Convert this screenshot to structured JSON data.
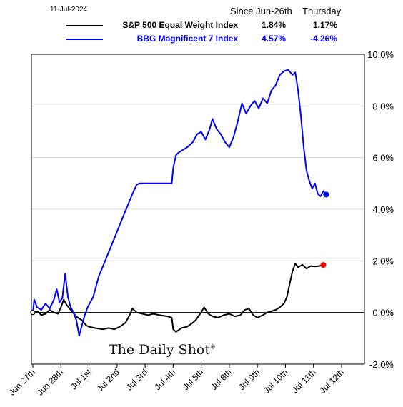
{
  "header": {
    "date": "11-Jul-2024",
    "col1": "Since Jun-26th",
    "col2": "Thursday"
  },
  "legend": [
    {
      "name": "S&P 500 Equal Weight Index",
      "since": "1.84%",
      "day": "1.17%",
      "color": "#000000"
    },
    {
      "name": "BBG Magnificent 7 Index",
      "since": "4.57%",
      "day": "-4.26%",
      "color": "#0000ff"
    }
  ],
  "watermark": "The Daily Shot",
  "chart_data": {
    "type": "line",
    "x_tick_labels": [
      "Jun 27th",
      "Jun 28th",
      "Jul 1st",
      "Jul 2nd",
      "Jul 3rd",
      "Jul 4th",
      "Jul 5th",
      "Jul 8th",
      "Jul 9th",
      "Jul 10th",
      "Jul 11th",
      "Jul 12th"
    ],
    "x_range": [
      0,
      11
    ],
    "y_ticks": [
      "10.0%",
      "8.0%",
      "6.0%",
      "4.0%",
      "2.0%",
      "0.0%",
      "-2.0%"
    ],
    "ylim": [
      -2,
      10
    ],
    "grid": true,
    "series": [
      {
        "name": "S&P 500 Equal Weight Index",
        "color": "#000000",
        "end_marker_color": "#ff0000",
        "points": [
          [
            0,
            0
          ],
          [
            0.15,
            0.05
          ],
          [
            0.3,
            -0.1
          ],
          [
            0.45,
            -0.05
          ],
          [
            0.6,
            0.1
          ],
          [
            0.75,
            0.0
          ],
          [
            0.9,
            -0.05
          ],
          [
            1.0,
            0.2
          ],
          [
            1.1,
            0.5
          ],
          [
            1.2,
            0.3
          ],
          [
            1.35,
            0.1
          ],
          [
            1.5,
            -0.1
          ],
          [
            1.6,
            -0.2
          ],
          [
            1.75,
            -0.3
          ],
          [
            1.9,
            -0.5
          ],
          [
            2.0,
            -0.55
          ],
          [
            2.2,
            -0.6
          ],
          [
            2.5,
            -0.65
          ],
          [
            2.7,
            -0.6
          ],
          [
            2.9,
            -0.65
          ],
          [
            3.1,
            -0.55
          ],
          [
            3.3,
            -0.4
          ],
          [
            3.45,
            -0.1
          ],
          [
            3.55,
            0.15
          ],
          [
            3.7,
            0.0
          ],
          [
            3.9,
            -0.05
          ],
          [
            4.1,
            -0.1
          ],
          [
            4.3,
            -0.05
          ],
          [
            4.5,
            -0.1
          ],
          [
            4.8,
            -0.15
          ],
          [
            4.95,
            -0.2
          ],
          [
            5.0,
            -0.65
          ],
          [
            5.1,
            -0.75
          ],
          [
            5.3,
            -0.6
          ],
          [
            5.5,
            -0.55
          ],
          [
            5.7,
            -0.4
          ],
          [
            5.8,
            -0.3
          ],
          [
            5.9,
            -0.15
          ],
          [
            6.0,
            0.0
          ],
          [
            6.1,
            0.2
          ],
          [
            6.25,
            -0.05
          ],
          [
            6.4,
            -0.15
          ],
          [
            6.6,
            -0.2
          ],
          [
            6.8,
            -0.1
          ],
          [
            7.0,
            -0.05
          ],
          [
            7.2,
            -0.15
          ],
          [
            7.4,
            -0.1
          ],
          [
            7.55,
            0.1
          ],
          [
            7.7,
            0.15
          ],
          [
            7.85,
            -0.1
          ],
          [
            8.0,
            -0.2
          ],
          [
            8.2,
            -0.1
          ],
          [
            8.35,
            0.0
          ],
          [
            8.5,
            0.05
          ],
          [
            8.65,
            0.1
          ],
          [
            8.8,
            0.2
          ],
          [
            8.95,
            0.35
          ],
          [
            9.05,
            0.6
          ],
          [
            9.15,
            1.1
          ],
          [
            9.25,
            1.6
          ],
          [
            9.35,
            1.9
          ],
          [
            9.45,
            1.75
          ],
          [
            9.6,
            1.85
          ],
          [
            9.75,
            1.7
          ],
          [
            9.9,
            1.8
          ],
          [
            10.05,
            1.78
          ],
          [
            10.2,
            1.8
          ],
          [
            10.35,
            1.84
          ]
        ]
      },
      {
        "name": "BBG Magnificent 7 Index",
        "color": "#0000ff",
        "end_marker_color": "#0000ff",
        "points": [
          [
            0,
            0
          ],
          [
            0.05,
            0.5
          ],
          [
            0.15,
            0.2
          ],
          [
            0.3,
            0.1
          ],
          [
            0.45,
            0.35
          ],
          [
            0.6,
            0.15
          ],
          [
            0.75,
            0.5
          ],
          [
            0.85,
            0.9
          ],
          [
            0.95,
            0.4
          ],
          [
            1.05,
            0.55
          ],
          [
            1.15,
            1.5
          ],
          [
            1.25,
            0.6
          ],
          [
            1.35,
            0.2
          ],
          [
            1.45,
            0.0
          ],
          [
            1.55,
            -0.3
          ],
          [
            1.65,
            -0.9
          ],
          [
            1.75,
            -0.5
          ],
          [
            1.85,
            -0.1
          ],
          [
            1.95,
            0.2
          ],
          [
            2.05,
            0.4
          ],
          [
            2.15,
            0.6
          ],
          [
            2.25,
            1.0
          ],
          [
            2.35,
            1.4
          ],
          [
            2.5,
            1.8
          ],
          [
            2.65,
            2.2
          ],
          [
            2.8,
            2.6
          ],
          [
            2.95,
            3.0
          ],
          [
            3.1,
            3.4
          ],
          [
            3.25,
            3.8
          ],
          [
            3.4,
            4.2
          ],
          [
            3.55,
            4.6
          ],
          [
            3.7,
            4.95
          ],
          [
            3.8,
            5.0
          ],
          [
            4.2,
            5.0
          ],
          [
            4.6,
            5.0
          ],
          [
            4.95,
            5.0
          ],
          [
            5.0,
            5.6
          ],
          [
            5.1,
            6.1
          ],
          [
            5.2,
            6.2
          ],
          [
            5.35,
            6.3
          ],
          [
            5.5,
            6.4
          ],
          [
            5.7,
            6.6
          ],
          [
            5.85,
            6.9
          ],
          [
            6.0,
            7.0
          ],
          [
            6.15,
            6.7
          ],
          [
            6.3,
            7.1
          ],
          [
            6.4,
            7.5
          ],
          [
            6.55,
            7.1
          ],
          [
            6.7,
            6.9
          ],
          [
            6.85,
            6.6
          ],
          [
            7.0,
            6.4
          ],
          [
            7.15,
            6.8
          ],
          [
            7.3,
            7.4
          ],
          [
            7.45,
            8.1
          ],
          [
            7.6,
            7.7
          ],
          [
            7.75,
            8.0
          ],
          [
            7.9,
            8.2
          ],
          [
            8.05,
            7.9
          ],
          [
            8.2,
            8.3
          ],
          [
            8.35,
            8.1
          ],
          [
            8.5,
            8.6
          ],
          [
            8.65,
            8.8
          ],
          [
            8.8,
            9.2
          ],
          [
            8.95,
            9.35
          ],
          [
            9.1,
            9.4
          ],
          [
            9.25,
            9.2
          ],
          [
            9.35,
            9.3
          ],
          [
            9.45,
            8.6
          ],
          [
            9.55,
            7.6
          ],
          [
            9.65,
            6.4
          ],
          [
            9.75,
            5.5
          ],
          [
            9.85,
            5.1
          ],
          [
            9.95,
            4.8
          ],
          [
            10.05,
            5.0
          ],
          [
            10.15,
            4.6
          ],
          [
            10.25,
            4.5
          ],
          [
            10.35,
            4.7
          ],
          [
            10.45,
            4.57
          ]
        ]
      }
    ]
  }
}
